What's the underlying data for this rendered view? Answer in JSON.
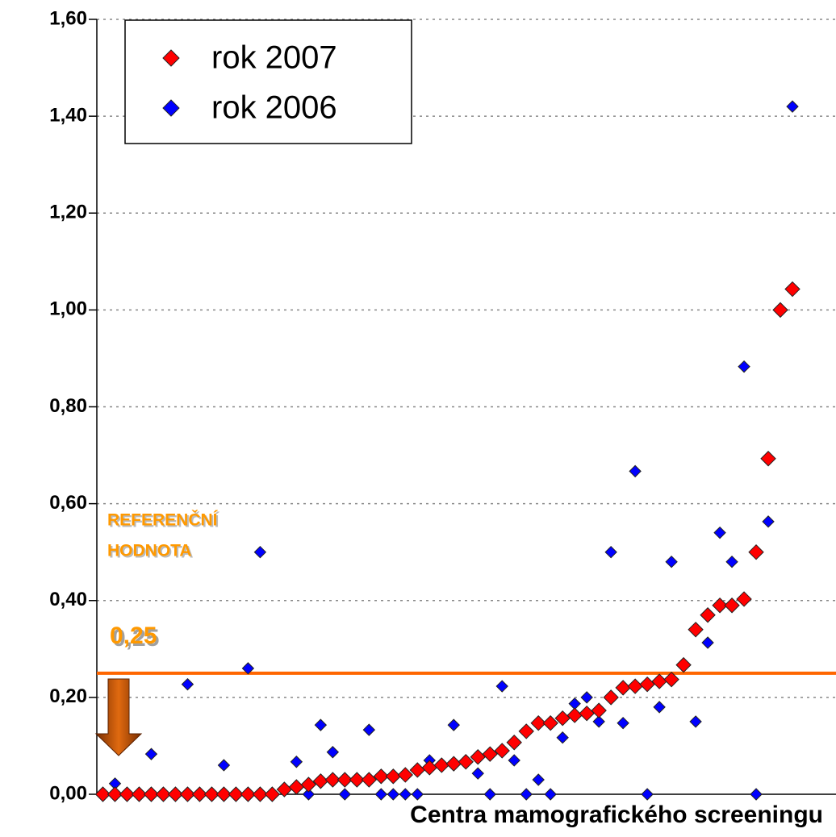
{
  "chart_data": {
    "type": "scatter",
    "x_label": "Centra mamografického screeningu",
    "x": [
      1,
      2,
      3,
      4,
      5,
      6,
      7,
      8,
      9,
      10,
      11,
      12,
      13,
      14,
      15,
      16,
      17,
      18,
      19,
      20,
      21,
      22,
      23,
      24,
      25,
      26,
      27,
      28,
      29,
      30,
      31,
      32,
      33,
      34,
      35,
      36,
      37,
      38,
      39,
      40,
      41,
      42,
      43,
      44,
      45,
      46,
      47,
      48,
      49,
      50,
      51,
      52,
      53,
      54,
      55,
      56,
      57,
      58
    ],
    "xlim": [
      0.5,
      61.6
    ],
    "ylim": [
      0,
      1.6
    ],
    "yticks": [
      {
        "value": 0,
        "label": "0,00"
      },
      {
        "value": 0.2,
        "label": "0,20"
      },
      {
        "value": 0.4,
        "label": "0,40"
      },
      {
        "value": 0.6,
        "label": "0,60"
      },
      {
        "value": 0.8,
        "label": "0,80"
      },
      {
        "value": 1.0,
        "label": "1,00"
      },
      {
        "value": 1.2,
        "label": "1,20"
      },
      {
        "value": 1.4,
        "label": "1,40"
      },
      {
        "value": 1.6,
        "label": "1,60"
      }
    ],
    "grid": true,
    "legend": "top-left",
    "series": [
      {
        "name": "rok 2007",
        "color": "#ff0000",
        "values": [
          0,
          0,
          0,
          0,
          0,
          0,
          0,
          0,
          0,
          0,
          0,
          0,
          0,
          0,
          0,
          0.01,
          0.015,
          0.02,
          0.027,
          0.03,
          0.03,
          0.03,
          0.03,
          0.037,
          0.037,
          0.04,
          0.05,
          0.055,
          0.06,
          0.063,
          0.067,
          0.077,
          0.083,
          0.09,
          0.107,
          0.13,
          0.147,
          0.147,
          0.157,
          0.163,
          0.167,
          0.173,
          0.2,
          0.22,
          0.223,
          0.227,
          0.233,
          0.237,
          0.267,
          0.34,
          0.37,
          0.39,
          0.39,
          0.403,
          0.5,
          0.693,
          1.0,
          1.043
        ]
      },
      {
        "name": "rok 2006",
        "color": "#0000ff",
        "values": [
          null,
          0.022,
          null,
          null,
          0.083,
          null,
          null,
          0.227,
          null,
          null,
          0.06,
          null,
          0.26,
          0.5,
          null,
          null,
          0.067,
          0,
          0.143,
          0.087,
          0,
          null,
          0.133,
          0,
          0,
          0,
          0,
          0.07,
          0.06,
          0.143,
          null,
          0.043,
          0,
          0.223,
          0.07,
          0,
          0.03,
          0,
          0.117,
          0.187,
          0.2,
          0.15,
          0.5,
          0.147,
          0.667,
          0,
          0.18,
          0.48,
          null,
          0.15,
          0.313,
          0.54,
          0.48,
          0.883,
          0,
          0.563,
          null,
          1.42
        ]
      }
    ],
    "reference_line": {
      "value": 0.25,
      "label": "0,25",
      "color": "#ff6600"
    },
    "annotations": [
      "REFERENČNÍ",
      "HODNOTA"
    ]
  }
}
